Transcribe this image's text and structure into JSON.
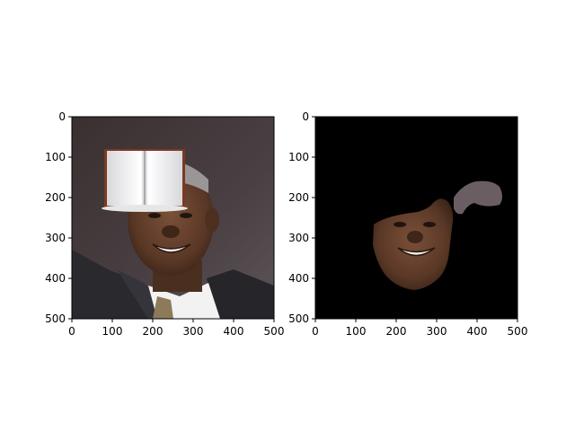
{
  "figure": {
    "panels": [
      {
        "name": "photo-panel",
        "xticks": [
          "0",
          "100",
          "200",
          "300",
          "400",
          "500"
        ],
        "yticks": [
          "0",
          "100",
          "200",
          "300",
          "400",
          "500"
        ],
        "content": "portrait-with-book-occluder"
      },
      {
        "name": "mask-panel",
        "xticks": [
          "0",
          "100",
          "200",
          "300",
          "400",
          "500"
        ],
        "yticks": [
          "0",
          "100",
          "200",
          "300",
          "400",
          "500"
        ],
        "content": "segmented-face-on-black"
      }
    ],
    "colors": {
      "mask_background": "#000000",
      "skin": "#5a3a28",
      "book_border": "#7a3a20",
      "book_pages": "#eeeeee",
      "suit": "#2a2a2e",
      "background_dark": "#2a2424"
    }
  }
}
